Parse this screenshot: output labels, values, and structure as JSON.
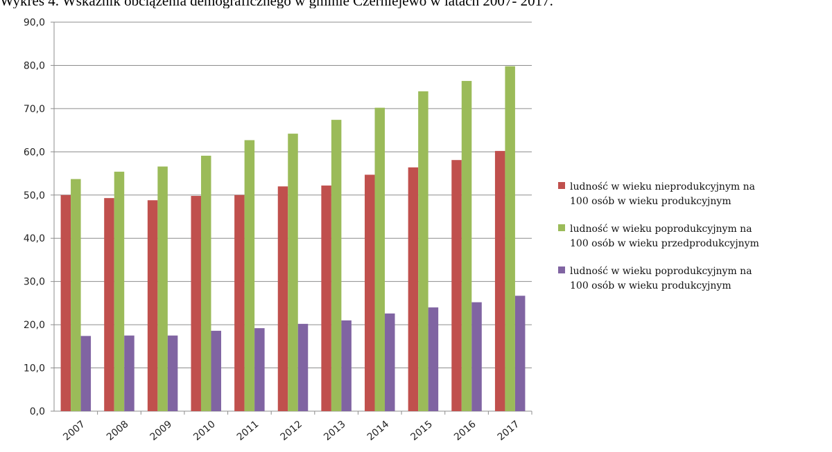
{
  "page": {
    "title": "Wykres 4. Wskaźnik obciążenia demograficznego w gminie Czerniejewo w latach 2007- 2017."
  },
  "chart_data": {
    "type": "bar",
    "title": "",
    "xlabel": "",
    "ylabel": "",
    "ylim": [
      0,
      90
    ],
    "yticks": [
      "0,0",
      "10,0",
      "20,0",
      "30,0",
      "40,0",
      "50,0",
      "60,0",
      "70,0",
      "80,0",
      "90,0"
    ],
    "grid": true,
    "legend_position": "right",
    "categories": [
      "2007",
      "2008",
      "2009",
      "2010",
      "2011",
      "2012",
      "2013",
      "2014",
      "2015",
      "2016",
      "2017"
    ],
    "series": [
      {
        "name": "ludność w wieku nieprodukcyjnym na 100 osób w wieku produkcyjnym",
        "legend_lines": [
          "ludność w wieku nieprodukcyjnym na",
          "100 osób w wieku produkcyjnym"
        ],
        "color": "#c0504d",
        "values": [
          50.0,
          49.3,
          48.8,
          49.8,
          50.0,
          52.0,
          52.2,
          54.7,
          56.4,
          58.1,
          60.2
        ]
      },
      {
        "name": "ludność w wieku poprodukcyjnym na 100 osób w wieku przedprodukcyjnym",
        "legend_lines": [
          "ludność w wieku poprodukcyjnym na",
          "100 osób w wieku przedprodukcyjnym"
        ],
        "color": "#9bbb59",
        "values": [
          53.7,
          55.4,
          56.6,
          59.1,
          62.7,
          64.2,
          67.4,
          70.2,
          74.0,
          76.4,
          79.8
        ]
      },
      {
        "name": "ludność w wieku poprodukcyjnym na 100 osób w wieku produkcyjnym",
        "legend_lines": [
          "ludność w wieku poprodukcyjnym na",
          "100 osób w wieku produkcyjnym"
        ],
        "color": "#8064a2",
        "values": [
          17.4,
          17.5,
          17.5,
          18.6,
          19.2,
          20.2,
          21.0,
          22.6,
          24.0,
          25.2,
          26.7
        ]
      }
    ]
  }
}
